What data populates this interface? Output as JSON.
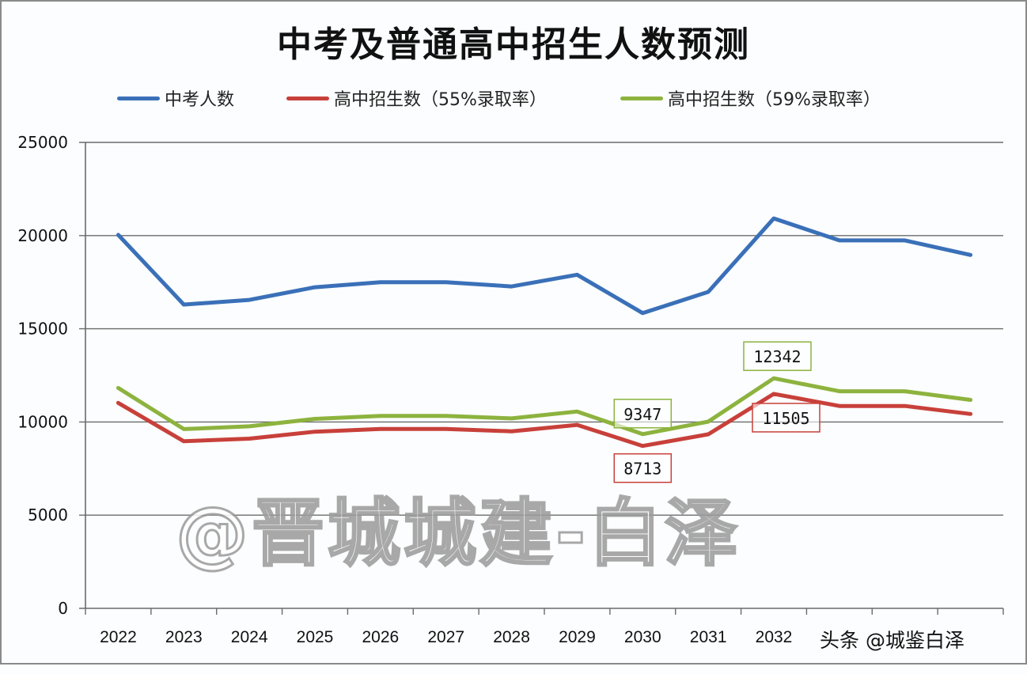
{
  "chart_data": {
    "type": "line",
    "title": "中考及普通高中招生人数预测",
    "xlabel": "",
    "ylabel": "",
    "ylim": [
      0,
      25000
    ],
    "yticks": [
      "0",
      "5000",
      "10000",
      "15000",
      "20000",
      "25000"
    ],
    "categories": [
      "2022",
      "2023",
      "2024",
      "2025",
      "2026",
      "2027",
      "2028",
      "2029",
      "2030",
      "2031",
      "2032",
      "",
      "",
      ""
    ],
    "grid": true,
    "legend_position": "top",
    "series": [
      {
        "name": "中考人数",
        "color": "#3a70b8",
        "values": [
          20040,
          16300,
          16550,
          17230,
          17500,
          17500,
          17270,
          17900,
          15842,
          16980,
          20919,
          19740,
          19740,
          18960
        ]
      },
      {
        "name": "高中招生数（55%录取率）",
        "color": "#c8403a",
        "values": [
          11022,
          8965,
          9103,
          9477,
          9625,
          9625,
          9499,
          9845,
          8713,
          9339,
          11505,
          10857,
          10857,
          10428
        ]
      },
      {
        "name": "高中招生数（59%录取率）",
        "color": "#8db33e",
        "values": [
          11824,
          9617,
          9765,
          10166,
          10325,
          10325,
          10189,
          10561,
          9347,
          10018,
          12342,
          11647,
          11647,
          11186
        ]
      }
    ],
    "annotations": [
      {
        "series": 2,
        "index": 8,
        "text": "9347",
        "position": "above"
      },
      {
        "series": 1,
        "index": 8,
        "text": "8713",
        "position": "below"
      },
      {
        "series": 2,
        "index": 10,
        "text": "12342",
        "position": "above"
      },
      {
        "series": 1,
        "index": 10,
        "text": "11505",
        "position": "below"
      }
    ]
  },
  "watermark": "@晋城城建-白泽",
  "source_mark": "头条 @城鉴白泽"
}
